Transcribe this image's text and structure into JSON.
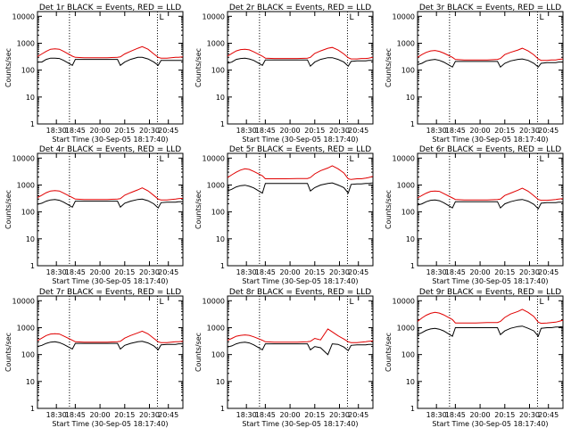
{
  "colors": {
    "background": "#ffffff",
    "axes": "#000000",
    "events": "#000000",
    "lld": "#e00000",
    "marker": "#000000"
  },
  "common": {
    "ylabel": "Counts/sec",
    "xlabel": "Start Time (30-Sep-05 18:17:40)",
    "x_ticks": [
      "18:30",
      "18:45",
      "20:00",
      "20:15",
      "20:30",
      "20:45"
    ],
    "y_ticks": [
      "1",
      "10",
      "100",
      "1000",
      "10000"
    ],
    "corner_mark": "L"
  },
  "chart_data": [
    {
      "type": "line",
      "title": "Det 1r BLACK = Events, RED = LLD",
      "ylim": [
        1,
        15000
      ],
      "series": [
        {
          "name": "Events",
          "color": "black",
          "values": [
            200,
            200,
            250,
            280,
            280,
            270,
            230,
            150,
            250,
            250,
            250,
            250,
            250,
            150,
            200,
            250,
            300,
            300,
            260,
            200,
            150,
            230,
            230,
            230,
            230,
            230,
            230
          ]
        },
        {
          "name": "LLD",
          "color": "red",
          "values": [
            320,
            400,
            500,
            600,
            620,
            600,
            500,
            330,
            300,
            290,
            290,
            290,
            300,
            310,
            400,
            500,
            650,
            750,
            600,
            400,
            300,
            280,
            280,
            290,
            300,
            300,
            310
          ]
        }
      ]
    },
    {
      "type": "line",
      "title": "Det 2r BLACK = Events, RED = LLD",
      "ylim": [
        1,
        15000
      ],
      "series": [
        {
          "name": "Events",
          "color": "black",
          "values": [
            180,
            200,
            250,
            270,
            280,
            260,
            230,
            150,
            240,
            240,
            240,
            240,
            240,
            140,
            200,
            250,
            290,
            290,
            250,
            200,
            140,
            210,
            220,
            220,
            220,
            230,
            230
          ]
        },
        {
          "name": "LLD",
          "color": "red",
          "values": [
            330,
            420,
            520,
            580,
            600,
            570,
            480,
            330,
            280,
            270,
            270,
            270,
            280,
            300,
            420,
            520,
            650,
            700,
            560,
            400,
            290,
            260,
            260,
            270,
            270,
            280,
            300
          ]
        }
      ]
    },
    {
      "type": "line",
      "title": "Det 3r BLACK = Events, RED = LLD",
      "ylim": [
        1,
        15000
      ],
      "series": [
        {
          "name": "Events",
          "color": "black",
          "values": [
            160,
            180,
            220,
            240,
            250,
            230,
            200,
            130,
            210,
            210,
            210,
            210,
            210,
            130,
            180,
            220,
            250,
            260,
            230,
            180,
            130,
            180,
            190,
            190,
            190,
            200,
            200
          ]
        },
        {
          "name": "LLD",
          "color": "red",
          "values": [
            300,
            380,
            460,
            520,
            540,
            500,
            430,
            300,
            250,
            240,
            240,
            240,
            250,
            270,
            380,
            460,
            560,
            650,
            520,
            370,
            260,
            230,
            230,
            240,
            240,
            250,
            260
          ]
        }
      ]
    },
    {
      "type": "line",
      "title": "Det 4r BLACK = Events, RED = LLD",
      "ylim": [
        1,
        15000
      ],
      "series": [
        {
          "name": "Events",
          "color": "black",
          "values": [
            190,
            210,
            250,
            280,
            290,
            270,
            230,
            150,
            250,
            250,
            250,
            250,
            250,
            150,
            210,
            250,
            290,
            300,
            260,
            200,
            140,
            220,
            230,
            230,
            230,
            240,
            240
          ]
        },
        {
          "name": "LLD",
          "color": "red",
          "values": [
            340,
            420,
            520,
            600,
            620,
            600,
            500,
            340,
            300,
            290,
            290,
            290,
            300,
            310,
            420,
            520,
            660,
            780,
            610,
            410,
            300,
            280,
            280,
            290,
            300,
            310,
            320
          ]
        }
      ]
    },
    {
      "type": "line",
      "title": "Det 5r BLACK = Events, RED = LLD",
      "ylim": [
        1,
        15000
      ],
      "series": [
        {
          "name": "Events",
          "color": "black",
          "values": [
            600,
            700,
            850,
            950,
            980,
            900,
            780,
            500,
            1150,
            1150,
            1150,
            1150,
            1150,
            600,
            800,
            1000,
            1150,
            1200,
            1000,
            800,
            500,
            1050,
            1100,
            1100,
            1150,
            1150,
            1200
          ]
        },
        {
          "name": "LLD",
          "color": "red",
          "values": [
            1900,
            2400,
            3000,
            3600,
            4000,
            3800,
            3200,
            2200,
            1700,
            1700,
            1700,
            1750,
            1750,
            1900,
            2600,
            3400,
            4300,
            5200,
            4000,
            2800,
            1700,
            1600,
            1700,
            1700,
            1800,
            1900,
            2100
          ]
        }
      ]
    },
    {
      "type": "line",
      "title": "Det 6r BLACK = Events, RED = LLD",
      "ylim": [
        1,
        15000
      ],
      "series": [
        {
          "name": "Events",
          "color": "black",
          "values": [
            180,
            200,
            240,
            270,
            280,
            260,
            220,
            140,
            240,
            240,
            240,
            240,
            240,
            140,
            200,
            240,
            280,
            290,
            250,
            190,
            130,
            210,
            220,
            220,
            220,
            230,
            230
          ]
        },
        {
          "name": "LLD",
          "color": "red",
          "values": [
            330,
            410,
            500,
            580,
            600,
            580,
            480,
            330,
            290,
            280,
            280,
            280,
            290,
            300,
            410,
            500,
            640,
            760,
            590,
            400,
            290,
            270,
            270,
            280,
            290,
            300,
            310
          ]
        }
      ]
    },
    {
      "type": "line",
      "title": "Det 7r BLACK = Events, RED = LLD",
      "ylim": [
        1,
        15000
      ],
      "series": [
        {
          "name": "Events",
          "color": "black",
          "values": [
            200,
            220,
            260,
            290,
            300,
            280,
            240,
            160,
            260,
            260,
            260,
            260,
            260,
            160,
            220,
            260,
            300,
            310,
            270,
            210,
            150,
            230,
            240,
            240,
            240,
            250,
            250
          ]
        },
        {
          "name": "LLD",
          "color": "red",
          "values": [
            330,
            410,
            510,
            580,
            600,
            580,
            490,
            340,
            300,
            290,
            290,
            290,
            300,
            310,
            410,
            510,
            640,
            740,
            590,
            400,
            300,
            280,
            280,
            290,
            300,
            300,
            310
          ]
        }
      ]
    },
    {
      "type": "line",
      "title": "Det 8r BLACK = Events, RED = LLD",
      "ylim": [
        1,
        15000
      ],
      "series": [
        {
          "name": "Events",
          "color": "black",
          "values": [
            190,
            210,
            250,
            280,
            290,
            270,
            230,
            150,
            250,
            250,
            250,
            250,
            250,
            150,
            200,
            180,
            100,
            250,
            240,
            190,
            140,
            220,
            230,
            230,
            230,
            240,
            240
          ]
        },
        {
          "name": "LLD",
          "color": "red",
          "values": [
            340,
            400,
            480,
            520,
            540,
            520,
            460,
            340,
            300,
            290,
            290,
            290,
            300,
            310,
            400,
            350,
            900,
            700,
            500,
            380,
            300,
            280,
            280,
            290,
            300,
            310,
            320
          ]
        }
      ]
    },
    {
      "type": "line",
      "title": "Det 9r BLACK = Events, RED = LLD",
      "ylim": [
        1,
        15000
      ],
      "series": [
        {
          "name": "Events",
          "color": "black",
          "values": [
            550,
            650,
            800,
            900,
            950,
            880,
            760,
            480,
            1000,
            1000,
            1000,
            1000,
            1000,
            550,
            760,
            950,
            1100,
            1150,
            950,
            760,
            480,
            950,
            1000,
            1000,
            1050,
            1050,
            1100
          ]
        },
        {
          "name": "LLD",
          "color": "red",
          "values": [
            1700,
            2300,
            2900,
            3400,
            3700,
            3500,
            3000,
            2000,
            1500,
            1500,
            1500,
            1550,
            1550,
            1700,
            2400,
            3200,
            4000,
            4800,
            3700,
            2600,
            1600,
            1450,
            1500,
            1550,
            1600,
            1700,
            1900
          ]
        }
      ]
    }
  ]
}
